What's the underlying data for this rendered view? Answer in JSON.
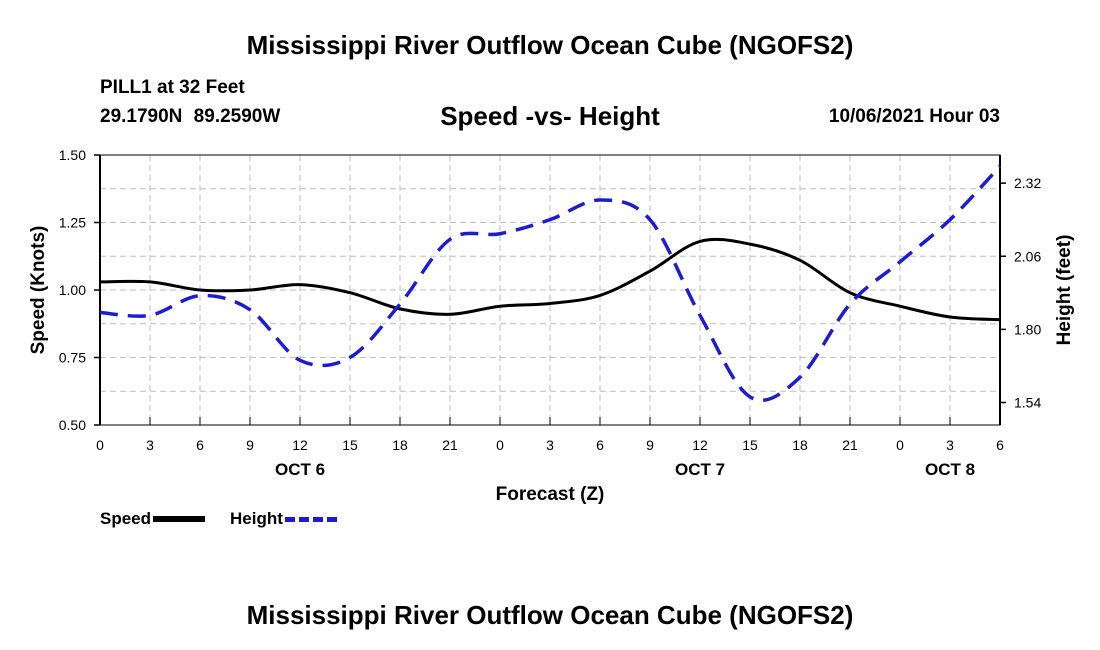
{
  "header": {
    "title": "Mississippi River Outflow Ocean Cube (NGOFS2)",
    "station": "PILL1 at 32 Feet",
    "coords": "29.1790N  89.2590W",
    "plot_title": "Speed -vs- Height",
    "datetime": "10/06/2021 Hour 03"
  },
  "footer": {
    "title": "Mississippi River Outflow Ocean Cube (NGOFS2)"
  },
  "legend": {
    "speed_label": "Speed",
    "height_label": "Height"
  },
  "colors": {
    "speed": "#000000",
    "height": "#1c1cd4",
    "grid": "#bdbdbd"
  },
  "chart_data": {
    "type": "line",
    "title": "Speed -vs- Height",
    "xlabel": "Forecast (Z)",
    "ylabel": "Speed (Knots)",
    "y2label": "Height (feet)",
    "x": [
      0,
      3,
      6,
      9,
      12,
      15,
      18,
      21,
      24,
      27,
      30,
      33,
      36,
      39,
      42,
      45,
      48,
      51,
      54
    ],
    "xtick_labels": [
      "0",
      "3",
      "6",
      "9",
      "12",
      "15",
      "18",
      "21",
      "0",
      "3",
      "6",
      "9",
      "12",
      "15",
      "18",
      "21",
      "0",
      "3",
      "6"
    ],
    "day_labels": [
      {
        "x": 12,
        "label": "OCT 6"
      },
      {
        "x": 36,
        "label": "OCT 7"
      },
      {
        "x": 51,
        "label": "OCT 8"
      }
    ],
    "ylim": [
      0.5,
      1.5
    ],
    "yticks": [
      "0.50",
      "0.75",
      "1.00",
      "1.25",
      "1.50"
    ],
    "y2lim": [
      1.46,
      2.42
    ],
    "y2ticks": [
      "1.54",
      "1.80",
      "2.06",
      "2.32"
    ],
    "series": [
      {
        "name": "Speed",
        "axis": "left",
        "x": [
          0,
          3,
          6,
          9,
          12,
          15,
          18,
          21,
          24,
          27,
          30,
          33,
          36,
          39,
          42,
          45,
          48,
          51,
          54
        ],
        "values": [
          1.03,
          1.03,
          1.0,
          1.0,
          1.02,
          0.99,
          0.93,
          0.91,
          0.94,
          0.95,
          0.98,
          1.07,
          1.18,
          1.17,
          1.11,
          0.99,
          0.94,
          0.9,
          0.89
        ]
      },
      {
        "name": "Height",
        "axis": "right",
        "x": [
          0,
          3,
          6,
          9,
          12,
          15,
          18,
          21,
          24,
          27,
          30,
          33,
          36,
          39,
          42,
          45,
          48,
          51,
          54
        ],
        "values": [
          1.86,
          1.85,
          1.92,
          1.87,
          1.69,
          1.7,
          1.89,
          2.12,
          2.14,
          2.19,
          2.26,
          2.19,
          1.85,
          1.56,
          1.63,
          1.89,
          2.04,
          2.19,
          2.38
        ]
      }
    ]
  }
}
